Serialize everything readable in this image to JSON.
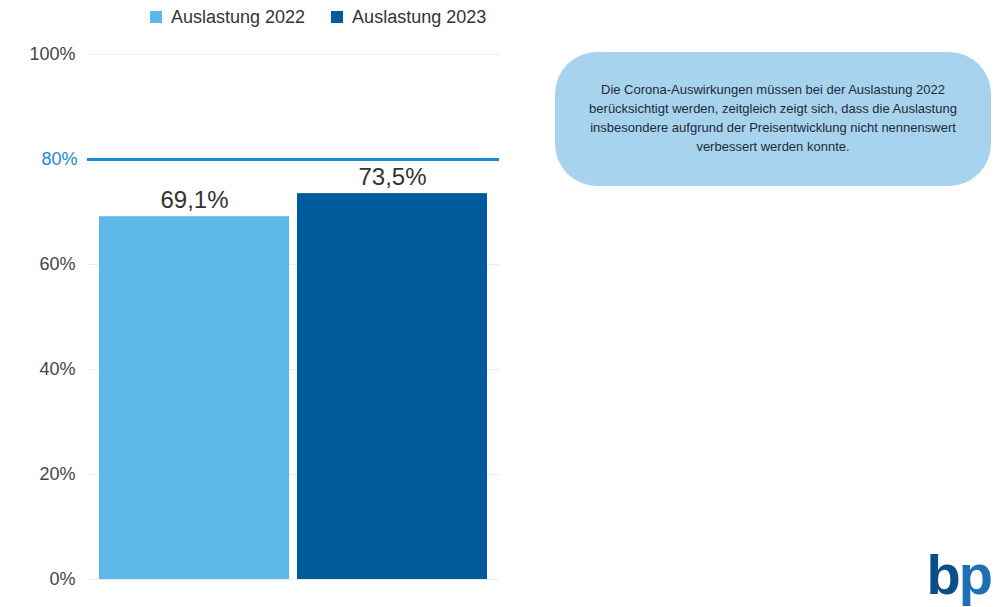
{
  "chart_data": {
    "type": "bar",
    "categories": [
      null
    ],
    "series": [
      {
        "name": "Auslastung 2022",
        "color": "#5db7e8",
        "values": [
          69.1
        ],
        "value_labels": [
          "69,1%"
        ]
      },
      {
        "name": "Auslastung 2023",
        "color": "#005b9c",
        "values": [
          73.5
        ],
        "value_labels": [
          "73,5%"
        ]
      }
    ],
    "ylim": [
      0,
      100
    ],
    "yticks": [
      {
        "value": 0,
        "label": "0%"
      },
      {
        "value": 20,
        "label": "20%"
      },
      {
        "value": 40,
        "label": "40%"
      },
      {
        "value": 60,
        "label": "60%"
      },
      {
        "value": 100,
        "label": "100%"
      }
    ],
    "reference_line": {
      "value": 80,
      "label": "80%",
      "color": "#1a8ad4"
    },
    "annotation": "Die Corona-Auswirkungen müssen bei der Auslastung 2022 berücksichtigt werden, zeitgleich zeigt sich, dass die Auslastung insbesondere aufgrund der Preisentwicklung nicht nennenswert verbessert werden konnte.",
    "logo": "bp",
    "grid": true,
    "legend": "top-left",
    "data_labels": true,
    "tick_labels": "y"
  }
}
